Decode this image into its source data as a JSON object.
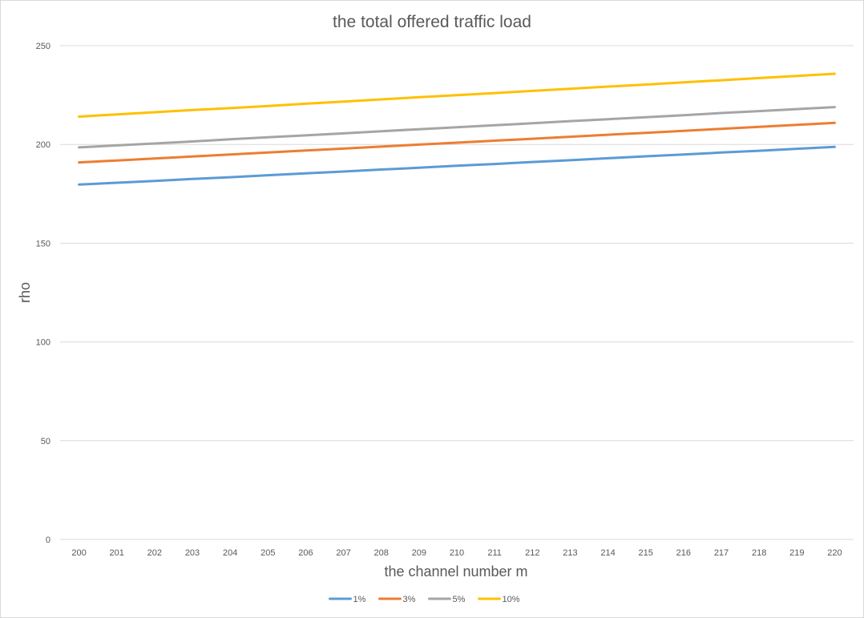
{
  "chart_data": {
    "type": "line",
    "title": "the total offered traffic load",
    "xlabel": "the channel number m",
    "ylabel": "rho",
    "x": [
      "200",
      "201",
      "202",
      "203",
      "204",
      "205",
      "206",
      "207",
      "208",
      "209",
      "210",
      "211",
      "212",
      "213",
      "214",
      "215",
      "216",
      "217",
      "218",
      "219",
      "220"
    ],
    "ylim": [
      0,
      250
    ],
    "yticks": [
      0,
      50,
      100,
      150,
      200,
      250
    ],
    "grid": true,
    "legend_position": "bottom",
    "series": [
      {
        "name": "1%",
        "color": "#5b9bd5",
        "values": [
          179.7,
          180.6,
          181.5,
          182.5,
          183.4,
          184.4,
          185.4,
          186.3,
          187.3,
          188.2,
          189.2,
          190.1,
          191.1,
          192.0,
          193.0,
          194.0,
          194.9,
          195.9,
          196.8,
          197.8,
          198.8
        ]
      },
      {
        "name": "3%",
        "color": "#ed7d31",
        "values": [
          190.9,
          191.9,
          192.9,
          193.9,
          194.9,
          195.9,
          196.9,
          197.9,
          198.9,
          199.9,
          200.9,
          201.9,
          202.9,
          203.9,
          204.9,
          205.9,
          206.9,
          207.9,
          208.9,
          209.9,
          210.9
        ]
      },
      {
        "name": "5%",
        "color": "#a5a5a5",
        "values": [
          198.5,
          199.5,
          200.5,
          201.5,
          202.6,
          203.6,
          204.6,
          205.6,
          206.7,
          207.7,
          208.7,
          209.7,
          210.7,
          211.8,
          212.8,
          213.8,
          214.8,
          215.9,
          216.9,
          217.9,
          218.9
        ]
      },
      {
        "name": "10%",
        "color": "#ffc000",
        "values": [
          214.1,
          215.2,
          216.3,
          217.4,
          218.4,
          219.5,
          220.6,
          221.7,
          222.8,
          223.9,
          224.9,
          226.0,
          227.1,
          228.2,
          229.3,
          230.3,
          231.4,
          232.5,
          233.6,
          234.7,
          235.8
        ]
      }
    ]
  }
}
